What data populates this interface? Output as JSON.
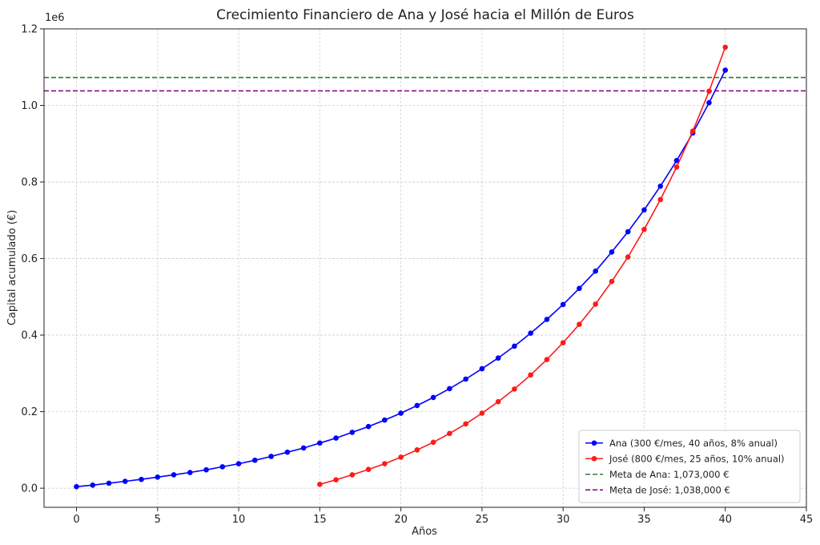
{
  "chart_data": {
    "type": "line",
    "title": "Crecimiento Financiero de Ana y José hacia el Millón de Euros",
    "xlabel": "Años",
    "ylabel": "Capital acumulado (€)",
    "y_scale_label": "1e6",
    "xlim": [
      -2,
      45
    ],
    "ylim": [
      -0.05,
      1.2
    ],
    "y_unit_multiplier": 1000000,
    "xticks": [
      0,
      5,
      10,
      15,
      20,
      25,
      30,
      35,
      40,
      45
    ],
    "yticks": [
      0.0,
      0.2,
      0.4,
      0.6,
      0.8,
      1.0,
      1.2
    ],
    "yticklabels": [
      "0.0",
      "0.2",
      "0.4",
      "0.6",
      "0.8",
      "1.0",
      "1.2"
    ],
    "grid": true,
    "legend_position": "bottom-right",
    "series": [
      {
        "name": "Ana (300 €/mes, 40 años, 8% anual)",
        "color": "#0000ff",
        "marker": true,
        "x": [
          0,
          1,
          2,
          3,
          4,
          5,
          6,
          7,
          8,
          9,
          10,
          11,
          12,
          13,
          14,
          15,
          16,
          17,
          18,
          19,
          20,
          21,
          22,
          23,
          24,
          25,
          26,
          27,
          28,
          29,
          30,
          31,
          32,
          33,
          34,
          35,
          36,
          37,
          38,
          39,
          40
        ],
        "values": [
          0.004,
          0.008,
          0.013,
          0.018,
          0.023,
          0.029,
          0.035,
          0.041,
          0.048,
          0.056,
          0.064,
          0.073,
          0.083,
          0.094,
          0.105,
          0.118,
          0.131,
          0.146,
          0.161,
          0.178,
          0.196,
          0.216,
          0.237,
          0.26,
          0.285,
          0.312,
          0.34,
          0.371,
          0.405,
          0.441,
          0.48,
          0.522,
          0.567,
          0.617,
          0.67,
          0.727,
          0.789,
          0.856,
          0.928,
          1.007,
          1.092
        ]
      },
      {
        "name": "José (800 €/mes, 25 años, 10% anual)",
        "color": "#ff1a1a",
        "marker": true,
        "x": [
          15,
          16,
          17,
          18,
          19,
          20,
          21,
          22,
          23,
          24,
          25,
          26,
          27,
          28,
          29,
          30,
          31,
          32,
          33,
          34,
          35,
          36,
          37,
          38,
          39,
          40
        ],
        "values": [
          0.01,
          0.022,
          0.035,
          0.049,
          0.064,
          0.081,
          0.1,
          0.12,
          0.143,
          0.168,
          0.196,
          0.226,
          0.259,
          0.296,
          0.336,
          0.38,
          0.428,
          0.481,
          0.54,
          0.604,
          0.676,
          0.754,
          0.839,
          0.933,
          1.037,
          1.152
        ]
      },
      {
        "name": "Meta de Ana: 1,073,000 €",
        "color": "#2e7d32",
        "style": "dashed",
        "hline": 1.073
      },
      {
        "name": "Meta de José: 1,038,000 €",
        "color": "#800080",
        "style": "dashed",
        "hline": 1.038
      }
    ]
  }
}
